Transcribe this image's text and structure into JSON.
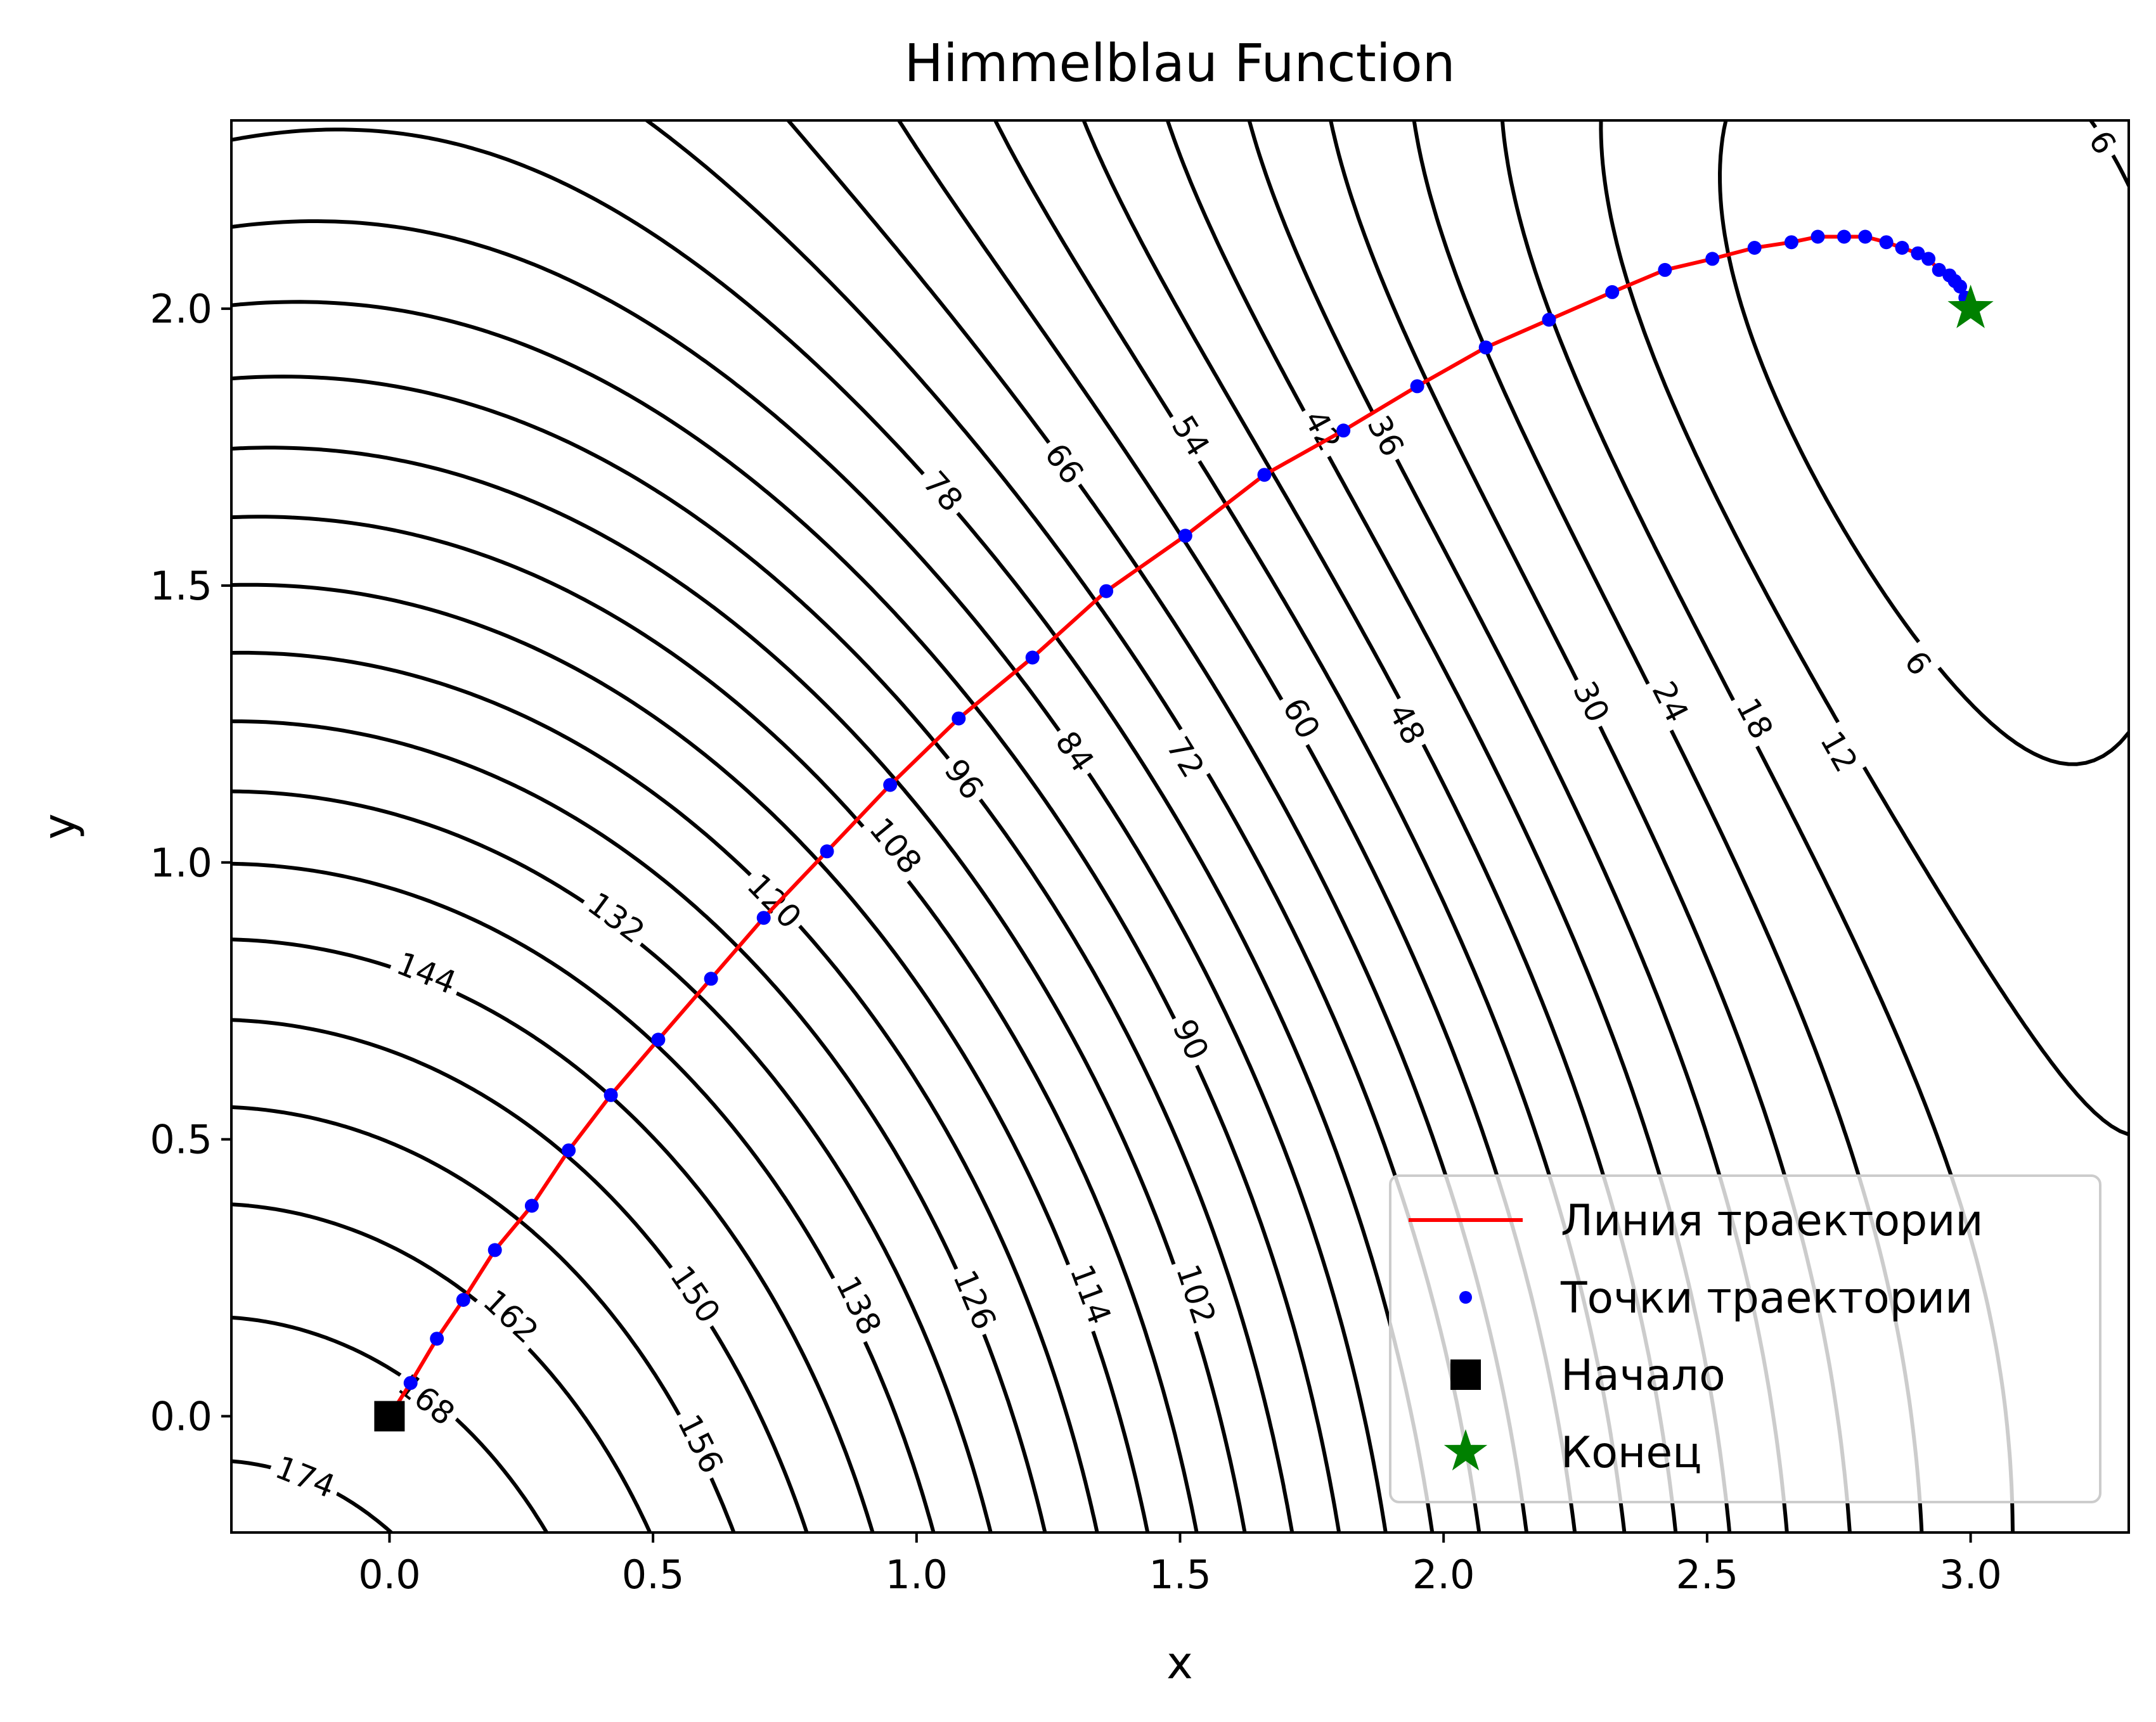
{
  "chart_data": {
    "type": "line",
    "title": "Himmelblau Function",
    "xlabel": "x",
    "ylabel": "y",
    "xlim": [
      -0.3,
      3.3
    ],
    "ylim": [
      -0.21,
      2.34
    ],
    "xticks": [
      "0.0",
      "0.5",
      "1.0",
      "1.5",
      "2.0",
      "2.5",
      "3.0"
    ],
    "yticks": [
      "0.0",
      "0.5",
      "1.0",
      "1.5",
      "2.0"
    ],
    "grid": false,
    "legend_position": "lower right",
    "contour_levels": [
      6,
      12,
      18,
      24,
      30,
      36,
      42,
      48,
      54,
      60,
      66,
      72,
      78,
      84,
      90,
      96,
      102,
      108,
      114,
      120,
      126,
      132,
      138,
      144,
      150,
      156,
      162,
      168,
      174
    ],
    "contour_labels": [
      {
        "text": "6",
        "x": 3.25,
        "y": 2.3
      },
      {
        "text": "6",
        "x": 2.9,
        "y": 1.36
      },
      {
        "text": "12",
        "x": 2.75,
        "y": 1.2
      },
      {
        "text": "18",
        "x": 2.59,
        "y": 1.26
      },
      {
        "text": "24",
        "x": 2.43,
        "y": 1.29
      },
      {
        "text": "30",
        "x": 2.28,
        "y": 1.29
      },
      {
        "text": "36",
        "x": 1.89,
        "y": 1.77
      },
      {
        "text": "42",
        "x": 1.77,
        "y": 1.78
      },
      {
        "text": "48",
        "x": 1.93,
        "y": 1.25
      },
      {
        "text": "54",
        "x": 1.52,
        "y": 1.77
      },
      {
        "text": "60",
        "x": 1.73,
        "y": 1.26
      },
      {
        "text": "66",
        "x": 1.28,
        "y": 1.72
      },
      {
        "text": "72",
        "x": 1.51,
        "y": 1.19
      },
      {
        "text": "78",
        "x": 1.05,
        "y": 1.67
      },
      {
        "text": "84",
        "x": 1.3,
        "y": 1.2
      },
      {
        "text": "90",
        "x": 1.52,
        "y": 0.68
      },
      {
        "text": "96",
        "x": 1.09,
        "y": 1.15
      },
      {
        "text": "102",
        "x": 1.53,
        "y": 0.22
      },
      {
        "text": "108",
        "x": 0.96,
        "y": 1.03
      },
      {
        "text": "114",
        "x": 1.33,
        "y": 0.22
      },
      {
        "text": "120",
        "x": 0.73,
        "y": 0.93
      },
      {
        "text": "126",
        "x": 1.11,
        "y": 0.21
      },
      {
        "text": "132",
        "x": 0.43,
        "y": 0.9
      },
      {
        "text": "138",
        "x": 0.89,
        "y": 0.2
      },
      {
        "text": "144",
        "x": 0.07,
        "y": 0.8
      },
      {
        "text": "150",
        "x": 0.58,
        "y": 0.22
      },
      {
        "text": "156",
        "x": 0.59,
        "y": -0.05
      },
      {
        "text": "162",
        "x": 0.23,
        "y": 0.18
      },
      {
        "text": "168",
        "x": 0.07,
        "y": 0.03
      },
      {
        "text": "174",
        "x": -0.16,
        "y": -0.11
      }
    ],
    "series": [
      {
        "name": "Линия траектории",
        "color": "#ff0000",
        "x": [
          0,
          0.04,
          0.09,
          0.14,
          0.2,
          0.27,
          0.34,
          0.42,
          0.51,
          0.61,
          0.71,
          0.83,
          0.95,
          1.08,
          1.22,
          1.36,
          1.51,
          1.66,
          1.81,
          1.95,
          2.08,
          2.2,
          2.32,
          2.42,
          2.51,
          2.59,
          2.66,
          2.71,
          2.76,
          2.8,
          2.84,
          2.87,
          2.9,
          2.92,
          2.94,
          2.96,
          2.97,
          2.98,
          2.99,
          3.0
        ],
        "y": [
          0,
          0.06,
          0.14,
          0.21,
          0.3,
          0.38,
          0.48,
          0.58,
          0.68,
          0.79,
          0.9,
          1.02,
          1.14,
          1.26,
          1.37,
          1.49,
          1.59,
          1.7,
          1.78,
          1.86,
          1.93,
          1.98,
          2.03,
          2.07,
          2.09,
          2.11,
          2.12,
          2.13,
          2.13,
          2.13,
          2.12,
          2.11,
          2.1,
          2.09,
          2.07,
          2.06,
          2.05,
          2.04,
          2.02,
          2.0
        ]
      },
      {
        "name": "Точки траектории",
        "color": "#0000ff",
        "x": [
          0,
          0.04,
          0.09,
          0.14,
          0.2,
          0.27,
          0.34,
          0.42,
          0.51,
          0.61,
          0.71,
          0.83,
          0.95,
          1.08,
          1.22,
          1.36,
          1.51,
          1.66,
          1.81,
          1.95,
          2.08,
          2.2,
          2.32,
          2.42,
          2.51,
          2.59,
          2.66,
          2.71,
          2.76,
          2.8,
          2.84,
          2.87,
          2.9,
          2.92,
          2.94,
          2.96,
          2.97,
          2.98,
          2.99,
          3.0
        ],
        "y": [
          0,
          0.06,
          0.14,
          0.21,
          0.3,
          0.38,
          0.48,
          0.58,
          0.68,
          0.79,
          0.9,
          1.02,
          1.14,
          1.26,
          1.37,
          1.49,
          1.59,
          1.7,
          1.78,
          1.86,
          1.93,
          1.98,
          2.03,
          2.07,
          2.09,
          2.11,
          2.12,
          2.13,
          2.13,
          2.13,
          2.12,
          2.11,
          2.1,
          2.09,
          2.07,
          2.06,
          2.05,
          2.04,
          2.02,
          2.0
        ]
      },
      {
        "name": "Начало",
        "color": "#000000",
        "marker": "square",
        "x": [
          0.0
        ],
        "y": [
          0.0
        ]
      },
      {
        "name": "Конец",
        "color": "#008000",
        "marker": "star",
        "x": [
          3.0
        ],
        "y": [
          2.0
        ]
      }
    ]
  }
}
